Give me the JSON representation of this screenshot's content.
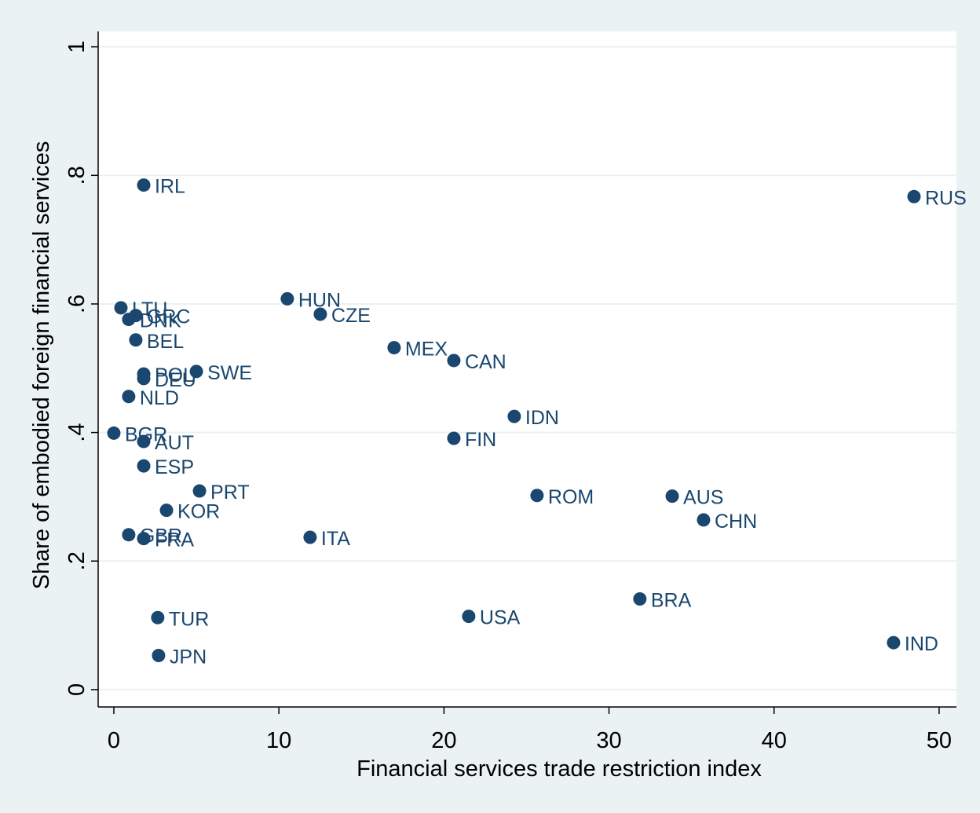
{
  "chart_data": {
    "type": "scatter",
    "x_label": "Financial services trade restriction index",
    "y_label": "Share of embodied foreign financial services",
    "color": "#1a476f",
    "grid": true,
    "labels": [
      "IRL",
      "RUS",
      "LTU",
      "DNK",
      "GRC",
      "HUN",
      "CZE",
      "BEL",
      "MEX",
      "CAN",
      "POL",
      "SWE",
      "DEU",
      "NLD",
      "IDN",
      "BGR",
      "AUT",
      "FIN",
      "ESP",
      "PRT",
      "ROM",
      "AUS",
      "KOR",
      "CHN",
      "GBR",
      "FRA",
      "ITA",
      "BRA",
      "TUR",
      "USA",
      "IND",
      "JPN"
    ],
    "x": [
      1.81,
      48.48,
      0.43,
      0.9,
      1.33,
      10.51,
      12.51,
      1.33,
      16.98,
      20.6,
      1.81,
      5.0,
      1.81,
      0.9,
      24.26,
      0,
      1.81,
      20.6,
      1.81,
      5.19,
      25.64,
      33.83,
      3.19,
      35.73,
      0.9,
      1.81,
      11.89,
      31.87,
      2.66,
      21.5,
      47.24,
      2.71
    ],
    "values": [
      0.785,
      0.767,
      0.594,
      0.576,
      0.582,
      0.608,
      0.584,
      0.544,
      0.532,
      0.512,
      0.491,
      0.495,
      0.484,
      0.456,
      0.425,
      0.399,
      0.386,
      0.391,
      0.348,
      0.309,
      0.302,
      0.301,
      0.279,
      0.264,
      0.241,
      0.235,
      0.237,
      0.141,
      0.112,
      0.114,
      0.073,
      0.053
    ],
    "xlim": [
      -0.95,
      51.05
    ],
    "ylim": [
      -0.027,
      1.024
    ],
    "xticks": [
      0,
      10,
      20,
      30,
      40,
      50
    ],
    "yticks": [
      0,
      {
        "value": 0.2,
        "label": ".2"
      },
      {
        "value": 0.4,
        "label": ".4"
      },
      {
        "value": 0.6,
        "label": ".6"
      },
      {
        "value": 0.8,
        "label": ".8"
      },
      1
    ]
  }
}
